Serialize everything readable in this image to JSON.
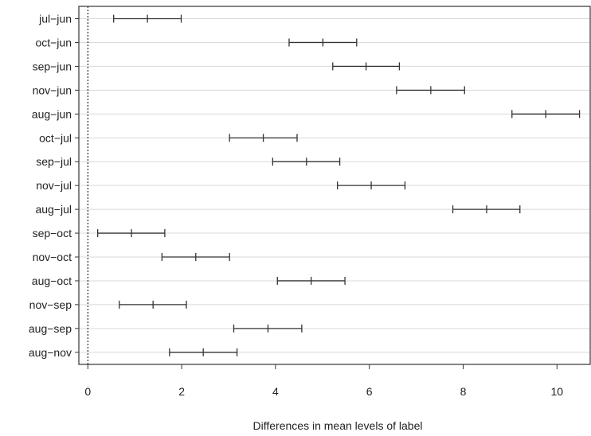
{
  "chart_data": {
    "type": "interval",
    "xlabel": "Differences in mean levels of label",
    "ylabel": "",
    "title": "",
    "xlim": [
      -0.2,
      10.7
    ],
    "xticks": [
      0,
      2,
      4,
      6,
      8,
      10
    ],
    "xtick_labels": [
      "0",
      "2",
      "4",
      "6",
      "8",
      "10"
    ],
    "reference_line": 0,
    "grid": "horizontal",
    "intervals": [
      {
        "label": "jul−jun",
        "lwr": 0.55,
        "diff": 1.27,
        "upr": 1.99
      },
      {
        "label": "oct−jun",
        "lwr": 4.29,
        "diff": 5.01,
        "upr": 5.73
      },
      {
        "label": "sep−jun",
        "lwr": 5.22,
        "diff": 5.93,
        "upr": 6.64
      },
      {
        "label": "nov−jun",
        "lwr": 6.58,
        "diff": 7.31,
        "upr": 8.03
      },
      {
        "label": "aug−jun",
        "lwr": 9.04,
        "diff": 9.76,
        "upr": 10.48
      },
      {
        "label": "oct−jul",
        "lwr": 3.02,
        "diff": 3.74,
        "upr": 4.46
      },
      {
        "label": "sep−jul",
        "lwr": 3.94,
        "diff": 4.66,
        "upr": 5.37
      },
      {
        "label": "nov−jul",
        "lwr": 5.32,
        "diff": 6.04,
        "upr": 6.76
      },
      {
        "label": "aug−jul",
        "lwr": 7.78,
        "diff": 8.5,
        "upr": 9.21
      },
      {
        "label": "sep−oct",
        "lwr": 0.21,
        "diff": 0.93,
        "upr": 1.64
      },
      {
        "label": "nov−oct",
        "lwr": 1.58,
        "diff": 2.3,
        "upr": 3.02
      },
      {
        "label": "aug−oct",
        "lwr": 4.04,
        "diff": 4.76,
        "upr": 5.48
      },
      {
        "label": "nov−sep",
        "lwr": 0.67,
        "diff": 1.39,
        "upr": 2.1
      },
      {
        "label": "aug−sep",
        "lwr": 3.11,
        "diff": 3.84,
        "upr": 4.56
      },
      {
        "label": "aug−nov",
        "lwr": 1.74,
        "diff": 2.46,
        "upr": 3.18
      }
    ]
  }
}
